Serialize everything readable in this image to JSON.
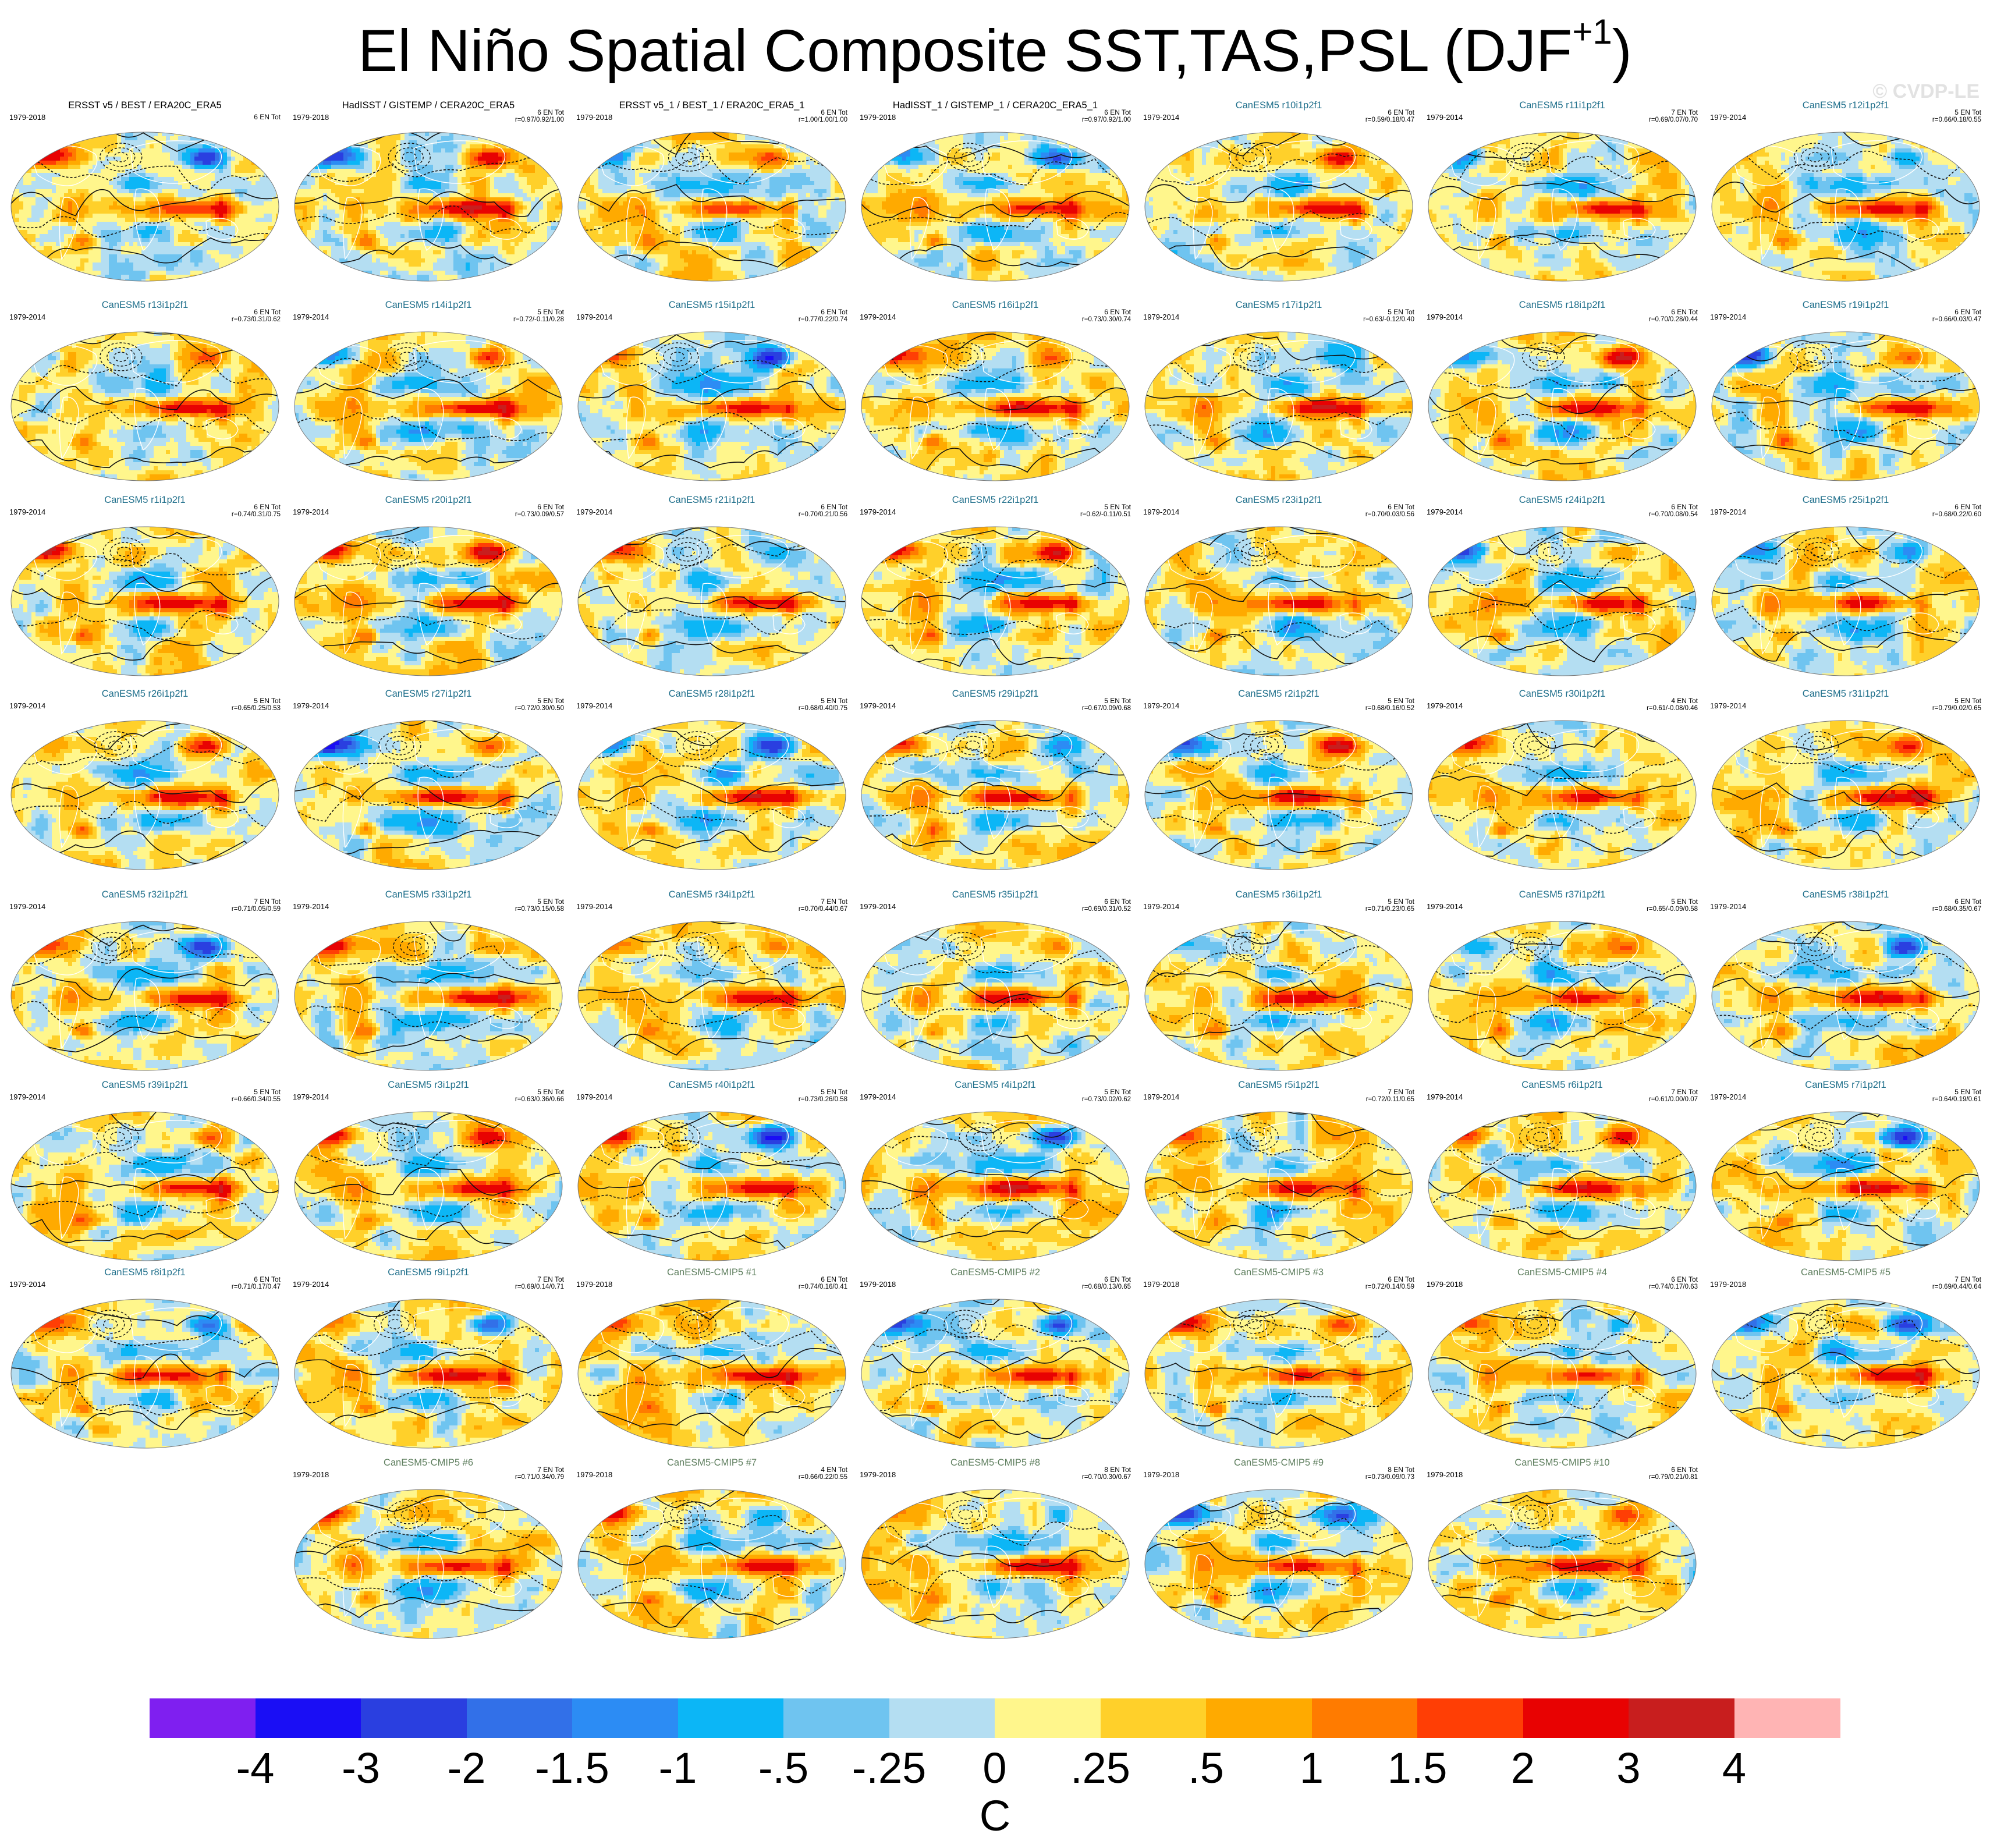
{
  "figure": {
    "title_main": "El Niño Spatial Composite SST,TAS,PSL (DJF",
    "title_superscript": "+1",
    "title_close": ")",
    "watermark": "© CVDP-LE"
  },
  "colors": {
    "observation_title": "#000000",
    "canesm5_title": "#1f6f8b",
    "cmip5_title": "#5f7f5f",
    "land_outline": "#ffffff",
    "psl_contour": "#111111"
  },
  "chart_data": {
    "type": "heatmap",
    "description_layout": "grid of global maps, 7 per row, last row centered",
    "variables": [
      "SST",
      "TAS",
      "PSL"
    ],
    "season": "DJF+1",
    "colorbar": {
      "units": "C",
      "labels": [
        "-4",
        "-3",
        "-2",
        "-1.5",
        "-1",
        "-.5",
        "-.25",
        "0",
        ".25",
        ".5",
        "1",
        "1.5",
        "2",
        "3",
        "4"
      ],
      "colors": [
        "#7f1ff0",
        "#1a0ef5",
        "#2a3fe0",
        "#3270e8",
        "#2c8cf4",
        "#0cb6f6",
        "#6fc4f0",
        "#b4def2",
        "#fff68c",
        "#ffd02a",
        "#ffaa00",
        "#ff7b00",
        "#ff3e05",
        "#e80202",
        "#c81e1e",
        "#ffb4b4"
      ]
    },
    "panels": [
      {
        "title": "ERSST v5 / BEST / ERA20C_ERA5",
        "kind": "obs",
        "years": "1979-2018",
        "events": "6 EN Tot",
        "stats": ""
      },
      {
        "title": "HadISST / GISTEMP / CERA20C_ERA5",
        "kind": "obs",
        "years": "1979-2018",
        "events": "6 EN Tot",
        "stats": "r=0.97/0.92/1.00"
      },
      {
        "title": "ERSST v5_1 / BEST_1 / ERA20C_ERA5_1",
        "kind": "obs",
        "years": "1979-2018",
        "events": "6 EN Tot",
        "stats": "r=1.00/1.00/1.00"
      },
      {
        "title": "HadISST_1 / GISTEMP_1 / CERA20C_ERA5_1",
        "kind": "obs",
        "years": "1979-2018",
        "events": "6 EN Tot",
        "stats": "r=0.97/0.92/1.00"
      },
      {
        "title": "CanESM5 r10i1p2f1",
        "kind": "canesm5",
        "years": "1979-2014",
        "events": "6 EN Tot",
        "stats": "r=0.59/0.18/0.47"
      },
      {
        "title": "CanESM5 r11i1p2f1",
        "kind": "canesm5",
        "years": "1979-2014",
        "events": "7 EN Tot",
        "stats": "r=0.69/0.07/0.70"
      },
      {
        "title": "CanESM5 r12i1p2f1",
        "kind": "canesm5",
        "years": "1979-2014",
        "events": "5 EN Tot",
        "stats": "r=0.66/0.18/0.55"
      },
      {
        "title": "CanESM5 r13i1p2f1",
        "kind": "canesm5",
        "years": "1979-2014",
        "events": "6 EN Tot",
        "stats": "r=0.73/0.31/0.62"
      },
      {
        "title": "CanESM5 r14i1p2f1",
        "kind": "canesm5",
        "years": "1979-2014",
        "events": "5 EN Tot",
        "stats": "r=0.72/-0.11/0.28"
      },
      {
        "title": "CanESM5 r15i1p2f1",
        "kind": "canesm5",
        "years": "1979-2014",
        "events": "6 EN Tot",
        "stats": "r=0.77/0.22/0.74"
      },
      {
        "title": "CanESM5 r16i1p2f1",
        "kind": "canesm5",
        "years": "1979-2014",
        "events": "6 EN Tot",
        "stats": "r=0.73/0.30/0.74"
      },
      {
        "title": "CanESM5 r17i1p2f1",
        "kind": "canesm5",
        "years": "1979-2014",
        "events": "5 EN Tot",
        "stats": "r=0.63/-0.12/0.40"
      },
      {
        "title": "CanESM5 r18i1p2f1",
        "kind": "canesm5",
        "years": "1979-2014",
        "events": "6 EN Tot",
        "stats": "r=0.70/0.28/0.44"
      },
      {
        "title": "CanESM5 r19i1p2f1",
        "kind": "canesm5",
        "years": "1979-2014",
        "events": "6 EN Tot",
        "stats": "r=0.66/0.03/0.47"
      },
      {
        "title": "CanESM5 r1i1p2f1",
        "kind": "canesm5",
        "years": "1979-2014",
        "events": "6 EN Tot",
        "stats": "r=0.74/0.31/0.75"
      },
      {
        "title": "CanESM5 r20i1p2f1",
        "kind": "canesm5",
        "years": "1979-2014",
        "events": "6 EN Tot",
        "stats": "r=0.73/0.09/0.57"
      },
      {
        "title": "CanESM5 r21i1p2f1",
        "kind": "canesm5",
        "years": "1979-2014",
        "events": "6 EN Tot",
        "stats": "r=0.70/0.21/0.56"
      },
      {
        "title": "CanESM5 r22i1p2f1",
        "kind": "canesm5",
        "years": "1979-2014",
        "events": "5 EN Tot",
        "stats": "r=0.62/-0.11/0.51"
      },
      {
        "title": "CanESM5 r23i1p2f1",
        "kind": "canesm5",
        "years": "1979-2014",
        "events": "6 EN Tot",
        "stats": "r=0.70/0.03/0.56"
      },
      {
        "title": "CanESM5 r24i1p2f1",
        "kind": "canesm5",
        "years": "1979-2014",
        "events": "6 EN Tot",
        "stats": "r=0.70/0.08/0.54"
      },
      {
        "title": "CanESM5 r25i1p2f1",
        "kind": "canesm5",
        "years": "1979-2014",
        "events": "6 EN Tot",
        "stats": "r=0.68/0.22/0.60"
      },
      {
        "title": "CanESM5 r26i1p2f1",
        "kind": "canesm5",
        "years": "1979-2014",
        "events": "5 EN Tot",
        "stats": "r=0.65/0.25/0.53"
      },
      {
        "title": "CanESM5 r27i1p2f1",
        "kind": "canesm5",
        "years": "1979-2014",
        "events": "5 EN Tot",
        "stats": "r=0.72/0.30/0.50"
      },
      {
        "title": "CanESM5 r28i1p2f1",
        "kind": "canesm5",
        "years": "1979-2014",
        "events": "5 EN Tot",
        "stats": "r=0.68/0.40/0.75"
      },
      {
        "title": "CanESM5 r29i1p2f1",
        "kind": "canesm5",
        "years": "1979-2014",
        "events": "5 EN Tot",
        "stats": "r=0.67/0.09/0.68"
      },
      {
        "title": "CanESM5 r2i1p2f1",
        "kind": "canesm5",
        "years": "1979-2014",
        "events": "5 EN Tot",
        "stats": "r=0.68/0.16/0.52"
      },
      {
        "title": "CanESM5 r30i1p2f1",
        "kind": "canesm5",
        "years": "1979-2014",
        "events": "4 EN Tot",
        "stats": "r=0.61/-0.08/0.46"
      },
      {
        "title": "CanESM5 r31i1p2f1",
        "kind": "canesm5",
        "years": "1979-2014",
        "events": "5 EN Tot",
        "stats": "r=0.79/0.02/0.65"
      },
      {
        "title": "CanESM5 r32i1p2f1",
        "kind": "canesm5",
        "years": "1979-2014",
        "events": "7 EN Tot",
        "stats": "r=0.71/0.05/0.59"
      },
      {
        "title": "CanESM5 r33i1p2f1",
        "kind": "canesm5",
        "years": "1979-2014",
        "events": "5 EN Tot",
        "stats": "r=0.73/0.15/0.58"
      },
      {
        "title": "CanESM5 r34i1p2f1",
        "kind": "canesm5",
        "years": "1979-2014",
        "events": "7 EN Tot",
        "stats": "r=0.70/0.44/0.67"
      },
      {
        "title": "CanESM5 r35i1p2f1",
        "kind": "canesm5",
        "years": "1979-2014",
        "events": "6 EN Tot",
        "stats": "r=0.69/0.31/0.52"
      },
      {
        "title": "CanESM5 r36i1p2f1",
        "kind": "canesm5",
        "years": "1979-2014",
        "events": "5 EN Tot",
        "stats": "r=0.71/0.23/0.65"
      },
      {
        "title": "CanESM5 r37i1p2f1",
        "kind": "canesm5",
        "years": "1979-2014",
        "events": "5 EN Tot",
        "stats": "r=0.65/-0.09/0.58"
      },
      {
        "title": "CanESM5 r38i1p2f1",
        "kind": "canesm5",
        "years": "1979-2014",
        "events": "6 EN Tot",
        "stats": "r=0.68/0.35/0.67"
      },
      {
        "title": "CanESM5 r39i1p2f1",
        "kind": "canesm5",
        "years": "1979-2014",
        "events": "5 EN Tot",
        "stats": "r=0.66/0.34/0.55"
      },
      {
        "title": "CanESM5 r3i1p2f1",
        "kind": "canesm5",
        "years": "1979-2014",
        "events": "5 EN Tot",
        "stats": "r=0.63/0.36/0.66"
      },
      {
        "title": "CanESM5 r40i1p2f1",
        "kind": "canesm5",
        "years": "1979-2014",
        "events": "5 EN Tot",
        "stats": "r=0.73/0.26/0.58"
      },
      {
        "title": "CanESM5 r4i1p2f1",
        "kind": "canesm5",
        "years": "1979-2014",
        "events": "5 EN Tot",
        "stats": "r=0.73/0.02/0.62"
      },
      {
        "title": "CanESM5 r5i1p2f1",
        "kind": "canesm5",
        "years": "1979-2014",
        "events": "7 EN Tot",
        "stats": "r=0.72/0.11/0.65"
      },
      {
        "title": "CanESM5 r6i1p2f1",
        "kind": "canesm5",
        "years": "1979-2014",
        "events": "7 EN Tot",
        "stats": "r=0.61/0.00/0.07"
      },
      {
        "title": "CanESM5 r7i1p2f1",
        "kind": "canesm5",
        "years": "1979-2014",
        "events": "5 EN Tot",
        "stats": "r=0.64/0.19/0.61"
      },
      {
        "title": "CanESM5 r8i1p2f1",
        "kind": "canesm5",
        "years": "1979-2014",
        "events": "6 EN Tot",
        "stats": "r=0.71/0.17/0.47"
      },
      {
        "title": "CanESM5 r9i1p2f1",
        "kind": "canesm5",
        "years": "1979-2014",
        "events": "7 EN Tot",
        "stats": "r=0.69/0.14/0.71"
      },
      {
        "title": "CanESM5-CMIP5 #1",
        "kind": "cmip5",
        "years": "1979-2018",
        "events": "6 EN Tot",
        "stats": "r=0.74/0.16/0.41"
      },
      {
        "title": "CanESM5-CMIP5 #2",
        "kind": "cmip5",
        "years": "1979-2018",
        "events": "6 EN Tot",
        "stats": "r=0.68/0.13/0.65"
      },
      {
        "title": "CanESM5-CMIP5 #3",
        "kind": "cmip5",
        "years": "1979-2018",
        "events": "6 EN Tot",
        "stats": "r=0.72/0.14/0.59"
      },
      {
        "title": "CanESM5-CMIP5 #4",
        "kind": "cmip5",
        "years": "1979-2018",
        "events": "6 EN Tot",
        "stats": "r=0.74/0.17/0.63"
      },
      {
        "title": "CanESM5-CMIP5 #5",
        "kind": "cmip5",
        "years": "1979-2018",
        "events": "7 EN Tot",
        "stats": "r=0.69/0.44/0.64"
      },
      {
        "title": "CanESM5-CMIP5 #6",
        "kind": "cmip5",
        "years": "1979-2018",
        "events": "7 EN Tot",
        "stats": "r=0.71/0.34/0.79"
      },
      {
        "title": "CanESM5-CMIP5 #7",
        "kind": "cmip5",
        "years": "1979-2018",
        "events": "4 EN Tot",
        "stats": "r=0.66/0.22/0.55"
      },
      {
        "title": "CanESM5-CMIP5 #8",
        "kind": "cmip5",
        "years": "1979-2018",
        "events": "8 EN Tot",
        "stats": "r=0.70/0.30/0.67"
      },
      {
        "title": "CanESM5-CMIP5 #9",
        "kind": "cmip5",
        "years": "1979-2018",
        "events": "8 EN Tot",
        "stats": "r=0.73/0.09/0.73"
      },
      {
        "title": "CanESM5-CMIP5 #10",
        "kind": "cmip5",
        "years": "1979-2018",
        "events": "6 EN Tot",
        "stats": "r=0.79/0.21/0.81"
      }
    ]
  }
}
